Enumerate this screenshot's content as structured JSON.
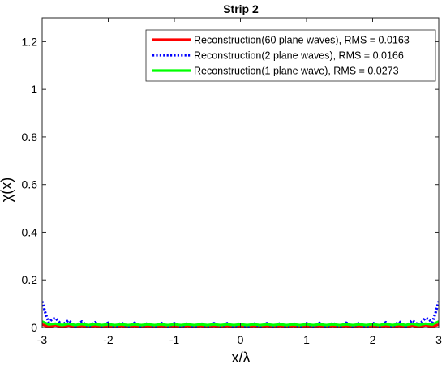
{
  "chart_data": {
    "type": "line",
    "title": "Strip 2",
    "xlabel": "x/λ",
    "ylabel": "χ(x)",
    "xlim": [
      -3,
      3
    ],
    "ylim": [
      0,
      1.3
    ],
    "xticks": [
      -3,
      -2,
      -1,
      0,
      1,
      2,
      3
    ],
    "xtick_labels": [
      "-3",
      "-2",
      "-1",
      "0",
      "1",
      "2",
      "3"
    ],
    "yticks": [
      0,
      0.2,
      0.4,
      0.6,
      0.8,
      1,
      1.2
    ],
    "ytick_labels": [
      "0",
      "0.2",
      "0.4",
      "0.6",
      "0.8",
      "1",
      "1.2"
    ],
    "grid": false,
    "legend_position": "top-right",
    "series": [
      {
        "name": "Reconstruction(60 plane waves), RMS = 0.0163",
        "color": "#ff0000",
        "style": "solid",
        "x": [
          -3.0,
          -2.9,
          -2.8,
          -2.7,
          -2.6,
          -2.5,
          -2.4,
          -2.3,
          -2.2,
          -2.1,
          -2.0,
          -1.9,
          -1.8,
          -1.7,
          -1.6,
          -1.5,
          -1.4,
          -1.3,
          -1.2,
          -1.1,
          -1.0,
          -0.9,
          -0.8,
          -0.7,
          -0.6,
          -0.5,
          -0.4,
          -0.3,
          -0.2,
          -0.1,
          0.0,
          0.1,
          0.2,
          0.3,
          0.4,
          0.5,
          0.6,
          0.7,
          0.8,
          0.9,
          1.0,
          1.1,
          1.2,
          1.3,
          1.4,
          1.5,
          1.6,
          1.7,
          1.8,
          1.9,
          2.0,
          2.1,
          2.2,
          2.3,
          2.4,
          2.5,
          2.6,
          2.7,
          2.8,
          2.9,
          3.0
        ],
        "y": [
          0.012,
          0.004,
          0.01,
          0.003,
          0.009,
          0.003,
          0.008,
          0.003,
          0.008,
          0.003,
          0.008,
          0.003,
          0.008,
          0.003,
          0.008,
          0.003,
          0.008,
          0.003,
          0.008,
          0.003,
          0.008,
          0.003,
          0.008,
          0.003,
          0.008,
          0.003,
          0.008,
          0.003,
          0.008,
          0.003,
          0.008,
          0.003,
          0.008,
          0.003,
          0.008,
          0.003,
          0.008,
          0.003,
          0.008,
          0.003,
          0.008,
          0.003,
          0.008,
          0.003,
          0.008,
          0.003,
          0.008,
          0.003,
          0.008,
          0.003,
          0.008,
          0.003,
          0.008,
          0.003,
          0.008,
          0.003,
          0.009,
          0.003,
          0.01,
          0.004,
          0.012
        ]
      },
      {
        "name": "Reconstruction(2 plane waves), RMS = 0.0166",
        "color": "#0000ff",
        "style": "dotted",
        "x": [
          -3.0,
          -2.95,
          -2.9,
          -2.85,
          -2.8,
          -2.7,
          -2.6,
          -2.5,
          -2.4,
          -2.3,
          -2.2,
          -2.1,
          -2.0,
          -1.9,
          -1.8,
          -1.7,
          -1.6,
          -1.5,
          -1.4,
          -1.3,
          -1.2,
          -1.1,
          -1.0,
          -0.9,
          -0.8,
          -0.7,
          -0.6,
          -0.5,
          -0.4,
          -0.3,
          -0.2,
          -0.1,
          0.0,
          0.1,
          0.2,
          0.3,
          0.4,
          0.5,
          0.6,
          0.7,
          0.8,
          0.9,
          1.0,
          1.1,
          1.2,
          1.3,
          1.4,
          1.5,
          1.6,
          1.7,
          1.8,
          1.9,
          2.0,
          2.1,
          2.2,
          2.3,
          2.4,
          2.5,
          2.6,
          2.7,
          2.8,
          2.85,
          2.9,
          2.95,
          3.0
        ],
        "y": [
          0.11,
          0.06,
          0.02,
          0.035,
          0.04,
          0.01,
          0.03,
          0.005,
          0.025,
          0.003,
          0.022,
          0.003,
          0.02,
          0.002,
          0.02,
          0.002,
          0.02,
          0.002,
          0.019,
          0.002,
          0.019,
          0.002,
          0.018,
          0.002,
          0.018,
          0.002,
          0.018,
          0.002,
          0.018,
          0.002,
          0.018,
          0.002,
          0.018,
          0.002,
          0.018,
          0.002,
          0.018,
          0.002,
          0.018,
          0.002,
          0.018,
          0.002,
          0.018,
          0.002,
          0.019,
          0.002,
          0.019,
          0.002,
          0.02,
          0.002,
          0.02,
          0.002,
          0.02,
          0.003,
          0.022,
          0.003,
          0.025,
          0.005,
          0.03,
          0.01,
          0.04,
          0.035,
          0.02,
          0.06,
          0.11
        ]
      },
      {
        "name": "Reconstruction(1 plane wave), RMS = 0.0273",
        "color": "#00ff00",
        "style": "solid",
        "x": [
          -3.0,
          -2.9,
          -2.8,
          -2.7,
          -2.6,
          -2.5,
          -2.4,
          -2.3,
          -2.2,
          -2.1,
          -2.0,
          -1.9,
          -1.8,
          -1.7,
          -1.6,
          -1.5,
          -1.4,
          -1.3,
          -1.2,
          -1.1,
          -1.0,
          -0.9,
          -0.8,
          -0.7,
          -0.6,
          -0.5,
          -0.4,
          -0.3,
          -0.2,
          -0.1,
          0.0,
          0.1,
          0.2,
          0.3,
          0.4,
          0.5,
          0.6,
          0.7,
          0.8,
          0.9,
          1.0,
          1.1,
          1.2,
          1.3,
          1.4,
          1.5,
          1.6,
          1.7,
          1.8,
          1.9,
          2.0,
          2.1,
          2.2,
          2.3,
          2.4,
          2.5,
          2.6,
          2.7,
          2.8,
          2.9,
          3.0
        ],
        "y": [
          0.025,
          0.012,
          0.016,
          0.01,
          0.015,
          0.01,
          0.014,
          0.01,
          0.014,
          0.01,
          0.013,
          0.01,
          0.013,
          0.01,
          0.013,
          0.01,
          0.013,
          0.01,
          0.013,
          0.01,
          0.013,
          0.01,
          0.013,
          0.01,
          0.013,
          0.01,
          0.013,
          0.01,
          0.013,
          0.01,
          0.013,
          0.01,
          0.013,
          0.01,
          0.013,
          0.01,
          0.013,
          0.01,
          0.013,
          0.01,
          0.013,
          0.01,
          0.013,
          0.01,
          0.013,
          0.01,
          0.013,
          0.01,
          0.013,
          0.01,
          0.013,
          0.01,
          0.014,
          0.01,
          0.014,
          0.01,
          0.015,
          0.01,
          0.016,
          0.012,
          0.025
        ]
      }
    ]
  }
}
